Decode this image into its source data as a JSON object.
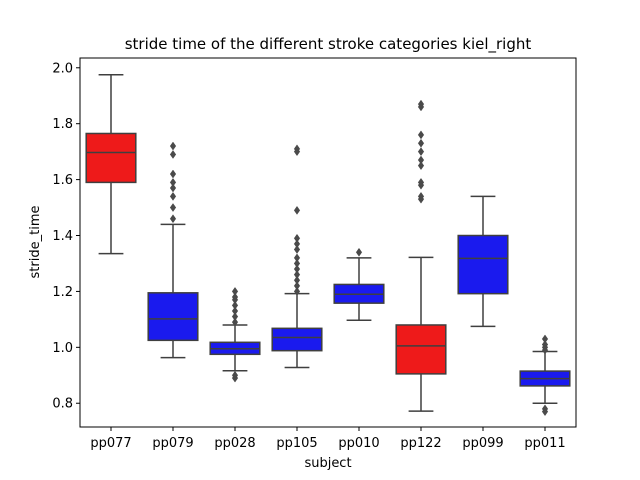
{
  "chart_data": {
    "type": "box",
    "title": "stride time of the different stroke categories kiel_right",
    "xlabel": "subject",
    "ylabel": "stride_time",
    "ylim": [
      0.715,
      2.035
    ],
    "yticks": [
      0.8,
      1.0,
      1.2,
      1.4,
      1.6,
      1.8,
      2.0
    ],
    "ytick_labels": [
      "0.8",
      "1.0",
      "1.2",
      "1.4",
      "1.6",
      "1.8",
      "2.0"
    ],
    "grid": false,
    "legend": "none",
    "colors": {
      "red": "#ee1a1a",
      "blue": "#1a1aee",
      "edge": "#3f3f3f",
      "outlier": "#4a4a4a"
    },
    "categories": [
      "pp077",
      "pp079",
      "pp028",
      "pp105",
      "pp010",
      "pp122",
      "pp099",
      "pp011"
    ],
    "boxes": [
      {
        "category": "pp077",
        "color": "red",
        "whislo": 1.335,
        "q1": 1.59,
        "med": 1.697,
        "q3": 1.765,
        "whishi": 1.975,
        "fliers": []
      },
      {
        "category": "pp079",
        "color": "blue",
        "whislo": 0.963,
        "q1": 1.025,
        "med": 1.102,
        "q3": 1.195,
        "whishi": 1.44,
        "fliers": [
          1.46,
          1.5,
          1.54,
          1.57,
          1.59,
          1.62,
          1.69,
          1.72
        ]
      },
      {
        "category": "pp028",
        "color": "blue",
        "whislo": 0.916,
        "q1": 0.975,
        "med": 0.995,
        "q3": 1.018,
        "whishi": 1.08,
        "fliers": [
          0.89,
          0.9,
          1.09,
          1.11,
          1.13,
          1.15,
          1.17,
          1.18,
          1.2
        ]
      },
      {
        "category": "pp105",
        "color": "blue",
        "whislo": 0.928,
        "q1": 0.988,
        "med": 1.035,
        "q3": 1.068,
        "whishi": 1.192,
        "fliers": [
          1.2,
          1.22,
          1.24,
          1.26,
          1.28,
          1.3,
          1.32,
          1.35,
          1.37,
          1.39,
          1.49,
          1.7,
          1.71
        ]
      },
      {
        "category": "pp010",
        "color": "blue",
        "whislo": 1.097,
        "q1": 1.158,
        "med": 1.19,
        "q3": 1.225,
        "whishi": 1.32,
        "fliers": [
          1.34
        ]
      },
      {
        "category": "pp122",
        "color": "red",
        "whislo": 0.772,
        "q1": 0.905,
        "med": 1.005,
        "q3": 1.08,
        "whishi": 1.322,
        "fliers": [
          1.53,
          1.54,
          1.58,
          1.59,
          1.65,
          1.67,
          1.7,
          1.73,
          1.76,
          1.86,
          1.87
        ]
      },
      {
        "category": "pp099",
        "color": "blue",
        "whislo": 1.075,
        "q1": 1.192,
        "med": 1.318,
        "q3": 1.4,
        "whishi": 1.54,
        "fliers": []
      },
      {
        "category": "pp011",
        "color": "blue",
        "whislo": 0.8,
        "q1": 0.862,
        "med": 0.888,
        "q3": 0.915,
        "whishi": 0.985,
        "fliers": [
          0.77,
          0.78,
          0.99,
          1.0,
          1.01,
          1.03
        ]
      }
    ]
  }
}
